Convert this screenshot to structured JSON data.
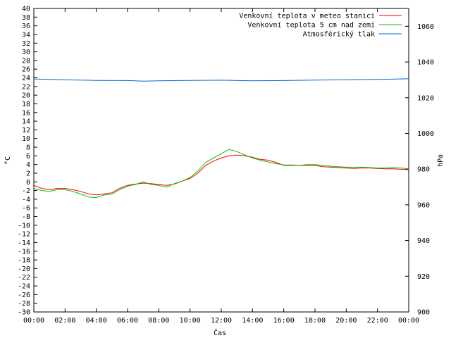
{
  "chart_data": {
    "type": "line",
    "title": "",
    "xlabel": "Čas",
    "ylabel_left": "°C",
    "ylabel_right": "hPa",
    "x_range": [
      0,
      24
    ],
    "x_ticks": [
      "00:00",
      "02:00",
      "04:00",
      "06:00",
      "08:00",
      "10:00",
      "12:00",
      "14:00",
      "16:00",
      "18:00",
      "20:00",
      "22:00",
      "00:00"
    ],
    "y_left_range": [
      -30,
      40
    ],
    "y_left_step": 2,
    "y_right_range": [
      900,
      1070
    ],
    "y_right_ticks": [
      900,
      920,
      940,
      960,
      980,
      1000,
      1020,
      1040,
      1060
    ],
    "legend_position": "top-right",
    "series": [
      {
        "name": "Venkovní teplota v meteo stanici",
        "color": "#ff0000",
        "axis": "left",
        "x": [
          0,
          0.5,
          1,
          1.5,
          2,
          2.5,
          3,
          3.5,
          4,
          4.5,
          5,
          5.5,
          6,
          6.5,
          7,
          7.5,
          8,
          8.5,
          9,
          9.5,
          10,
          10.5,
          11,
          11.5,
          12,
          12.5,
          13,
          13.5,
          14,
          14.5,
          15,
          15.5,
          16,
          16.5,
          17,
          17.5,
          18,
          18.5,
          19,
          19.5,
          20,
          20.5,
          21,
          21.5,
          22,
          22.5,
          23,
          23.5,
          24
        ],
        "values": [
          -0.8,
          -1.5,
          -1.8,
          -1.5,
          -1.5,
          -1.8,
          -2.2,
          -2.8,
          -3,
          -2.8,
          -2.5,
          -1.5,
          -0.8,
          -0.5,
          -0.3,
          -0.4,
          -0.6,
          -0.8,
          -0.5,
          0.2,
          0.8,
          2,
          3.8,
          4.8,
          5.5,
          6,
          6.2,
          6,
          5.7,
          5.2,
          5,
          4.5,
          3.8,
          3.8,
          3.8,
          3.8,
          3.8,
          3.5,
          3.4,
          3.3,
          3.2,
          3.1,
          3.2,
          3.2,
          3.1,
          3.0,
          3.0,
          2.9,
          2.8
        ]
      },
      {
        "name": "Venkovní teplota 5 cm nad zemí",
        "color": "#00c000",
        "axis": "left",
        "x": [
          0,
          0.5,
          1,
          1.5,
          2,
          2.5,
          3,
          3.5,
          4,
          4.5,
          5,
          5.5,
          6,
          6.5,
          7,
          7.5,
          8,
          8.5,
          9,
          9.5,
          10,
          10.5,
          11,
          11.5,
          12,
          12.5,
          13,
          13.5,
          14,
          14.5,
          15,
          15.5,
          16,
          16.5,
          17,
          17.5,
          18,
          18.5,
          19,
          19.5,
          20,
          20.5,
          21,
          21.5,
          22,
          22.5,
          23,
          23.5,
          24
        ],
        "values": [
          -1.5,
          -2,
          -2.2,
          -1.8,
          -1.8,
          -2.2,
          -2.8,
          -3.5,
          -3.6,
          -3,
          -2.8,
          -1.8,
          -1,
          -0.6,
          0,
          -0.6,
          -0.8,
          -1.2,
          -0.4,
          0.2,
          1,
          2.5,
          4.5,
          5.5,
          6.5,
          7.5,
          7,
          6.2,
          5.5,
          5,
          4.6,
          4.2,
          3.9,
          3.9,
          3.8,
          4,
          4,
          3.8,
          3.6,
          3.5,
          3.4,
          3.4,
          3.4,
          3.3,
          3.2,
          3.2,
          3.3,
          3.2,
          3.0
        ]
      },
      {
        "name": "Atmosférický tlak",
        "color": "#0066cc",
        "axis": "right",
        "x": [
          0,
          2,
          4,
          6,
          7,
          8,
          10,
          12,
          14,
          16,
          18,
          20,
          22,
          24
        ],
        "values": [
          1030.5,
          1030,
          1029.7,
          1029.6,
          1029.3,
          1029.5,
          1029.7,
          1029.8,
          1029.5,
          1029.6,
          1029.9,
          1030.1,
          1030.3,
          1030.6
        ]
      }
    ]
  }
}
